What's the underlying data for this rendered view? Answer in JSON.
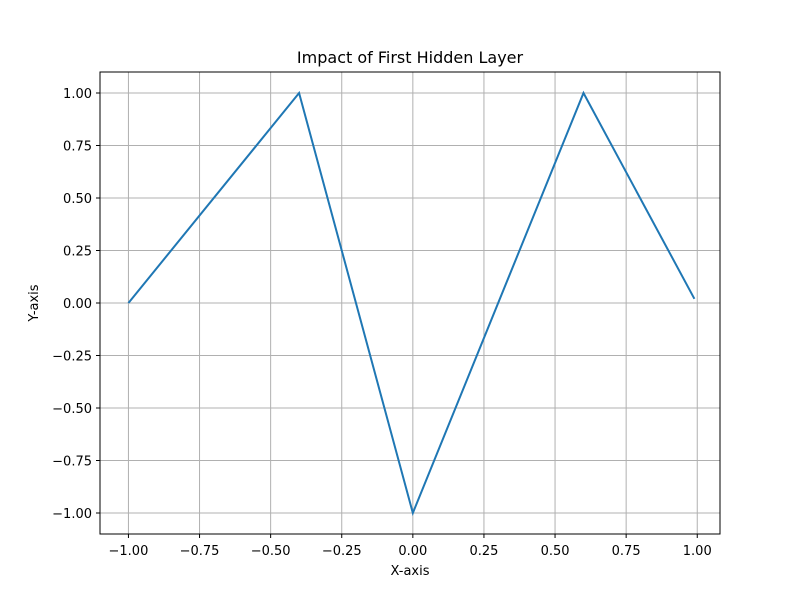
{
  "chart_data": {
    "type": "line",
    "title": "Impact of First Hidden Layer",
    "xlabel": "X-axis",
    "ylabel": "Y-axis",
    "xlim": [
      -1.1,
      1.08
    ],
    "ylim": [
      -1.1,
      1.1
    ],
    "x_ticks": [
      -1.0,
      -0.75,
      -0.5,
      -0.25,
      0.0,
      0.25,
      0.5,
      0.75,
      1.0
    ],
    "x_tick_labels": [
      "−1.00",
      "−0.75",
      "−0.50",
      "−0.25",
      "0.00",
      "0.25",
      "0.50",
      "0.75",
      "1.00"
    ],
    "y_ticks": [
      -1.0,
      -0.75,
      -0.5,
      -0.25,
      0.0,
      0.25,
      0.5,
      0.75,
      1.0
    ],
    "y_tick_labels": [
      "−1.00",
      "−0.75",
      "−0.50",
      "−0.25",
      "0.00",
      "0.25",
      "0.50",
      "0.75",
      "1.00"
    ],
    "grid": true,
    "series": [
      {
        "color": "#1f77b4",
        "x": [
          -1.0,
          -0.4,
          0.0,
          0.6,
          0.99
        ],
        "y": [
          0.0,
          1.0,
          -1.0,
          1.0,
          0.02
        ]
      }
    ]
  }
}
